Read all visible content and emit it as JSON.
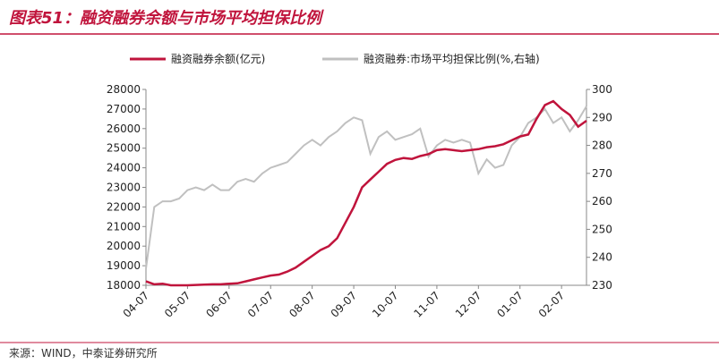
{
  "chart_data": {
    "type": "line",
    "title": "图表51：融资融券余额与市场平均担保比例",
    "source": "来源：WIND，中泰证券研究所",
    "categories": [
      "04-07",
      null,
      null,
      null,
      null,
      "05-07",
      null,
      null,
      null,
      null,
      "06-07",
      null,
      null,
      null,
      null,
      "07-07",
      null,
      null,
      null,
      null,
      "08-07",
      null,
      null,
      null,
      null,
      "09-07",
      null,
      null,
      null,
      null,
      "10-07",
      null,
      null,
      null,
      null,
      "11-07",
      null,
      null,
      null,
      null,
      "12-07",
      null,
      null,
      null,
      null,
      "01-07",
      null,
      null,
      null,
      null,
      "02-07",
      null,
      null,
      null
    ],
    "series": [
      {
        "name": "融资融券余额(亿元)",
        "color": "#c0143c",
        "values": [
          18200,
          18050,
          18080,
          18000,
          18000,
          18000,
          18020,
          18030,
          18050,
          18050,
          18080,
          18100,
          18200,
          18300,
          18400,
          18500,
          18550,
          18700,
          18900,
          19200,
          19500,
          19800,
          20000,
          20400,
          21200,
          22000,
          23000,
          23400,
          23800,
          24200,
          24400,
          24500,
          24450,
          24600,
          24700,
          24900,
          24950,
          24900,
          24850,
          24900,
          24950,
          25050,
          25100,
          25200,
          25400,
          25600,
          25700,
          26500,
          27200,
          27400,
          27000,
          26700,
          26100,
          26400
        ]
      },
      {
        "name": "融资融券:市场平均担保比例(%,右轴)",
        "color": "#c0c0c0",
        "axis": "y2",
        "values": [
          236,
          258,
          260,
          260,
          261,
          264,
          265,
          264,
          266,
          264,
          264,
          267,
          268,
          267,
          270,
          272,
          273,
          274,
          277,
          280,
          282,
          280,
          283,
          285,
          288,
          290,
          289,
          277,
          283,
          285,
          282,
          283,
          284,
          286,
          276,
          280,
          282,
          281,
          282,
          281,
          270,
          275,
          272,
          273,
          280,
          283,
          288,
          290,
          293,
          288,
          290,
          285,
          289,
          294
        ]
      }
    ],
    "ylim": [
      18000,
      28000
    ],
    "yticks": [
      18000,
      19000,
      20000,
      21000,
      22000,
      23000,
      24000,
      25000,
      26000,
      27000,
      28000
    ],
    "y2lim": [
      230,
      300
    ],
    "y2ticks": [
      230,
      240,
      250,
      260,
      270,
      280,
      290,
      300
    ]
  }
}
